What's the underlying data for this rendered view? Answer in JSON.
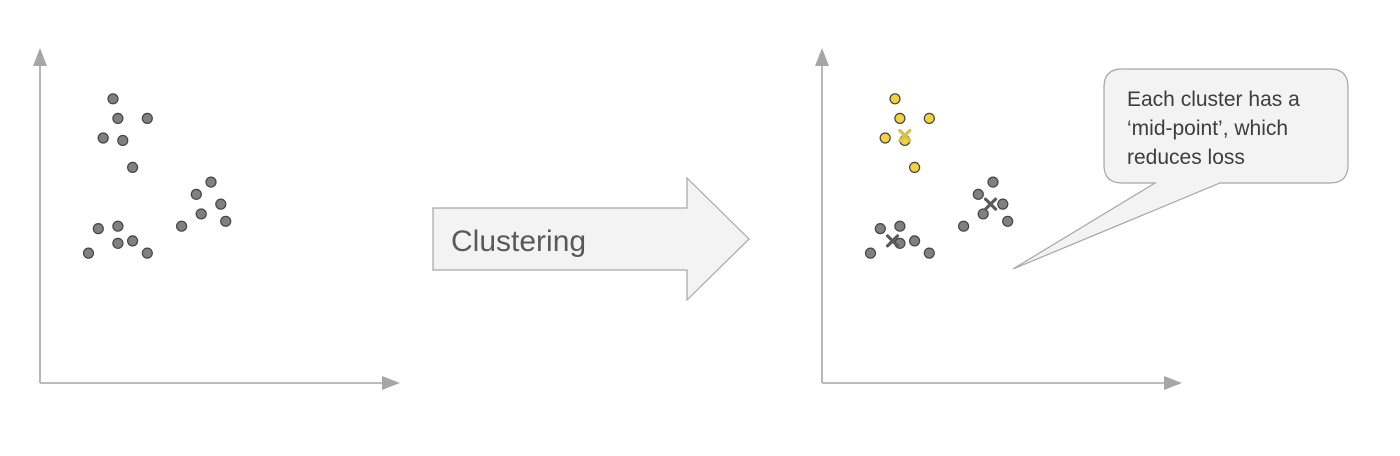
{
  "arrow": {
    "label": "Clustering"
  },
  "callout": {
    "lines": [
      "Each cluster has a",
      "‘mid-point’, which",
      "reduces loss"
    ]
  },
  "colors": {
    "point_default": "#808080",
    "point_highlight": "#f2d33c",
    "centroid_yellow": "#d9c04a",
    "centroid_gray": "#5a5a5a",
    "axis": "#a6a6a6",
    "shape_fill": "#f3f3f3"
  },
  "panels": {
    "before": {
      "points": [
        {
          "x": 2.0,
          "y": 5.8,
          "cluster": 0
        },
        {
          "x": 2.1,
          "y": 5.4,
          "cluster": 0
        },
        {
          "x": 2.7,
          "y": 5.4,
          "cluster": 0
        },
        {
          "x": 1.8,
          "y": 5.0,
          "cluster": 0
        },
        {
          "x": 2.2,
          "y": 4.95,
          "cluster": 0
        },
        {
          "x": 2.4,
          "y": 4.4,
          "cluster": 0
        },
        {
          "x": 4.0,
          "y": 4.1,
          "cluster": 1
        },
        {
          "x": 3.7,
          "y": 3.85,
          "cluster": 1
        },
        {
          "x": 4.2,
          "y": 3.65,
          "cluster": 1
        },
        {
          "x": 3.8,
          "y": 3.45,
          "cluster": 1
        },
        {
          "x": 3.4,
          "y": 3.2,
          "cluster": 1
        },
        {
          "x": 4.3,
          "y": 3.3,
          "cluster": 1
        },
        {
          "x": 1.7,
          "y": 3.15,
          "cluster": 2
        },
        {
          "x": 2.1,
          "y": 3.2,
          "cluster": 2
        },
        {
          "x": 2.1,
          "y": 2.85,
          "cluster": 2
        },
        {
          "x": 2.4,
          "y": 2.9,
          "cluster": 2
        },
        {
          "x": 1.5,
          "y": 2.65,
          "cluster": 2
        },
        {
          "x": 2.7,
          "y": 2.65,
          "cluster": 2
        }
      ]
    },
    "after": {
      "points": [
        {
          "x": 2.0,
          "y": 5.8,
          "cluster": 0
        },
        {
          "x": 2.1,
          "y": 5.4,
          "cluster": 0
        },
        {
          "x": 2.7,
          "y": 5.4,
          "cluster": 0
        },
        {
          "x": 1.8,
          "y": 5.0,
          "cluster": 0
        },
        {
          "x": 2.2,
          "y": 4.95,
          "cluster": 0
        },
        {
          "x": 2.4,
          "y": 4.4,
          "cluster": 0
        },
        {
          "x": 4.0,
          "y": 4.1,
          "cluster": 1
        },
        {
          "x": 3.7,
          "y": 3.85,
          "cluster": 1
        },
        {
          "x": 4.2,
          "y": 3.65,
          "cluster": 1
        },
        {
          "x": 3.8,
          "y": 3.45,
          "cluster": 1
        },
        {
          "x": 3.4,
          "y": 3.2,
          "cluster": 1
        },
        {
          "x": 4.3,
          "y": 3.3,
          "cluster": 1
        },
        {
          "x": 1.7,
          "y": 3.15,
          "cluster": 2
        },
        {
          "x": 2.1,
          "y": 3.2,
          "cluster": 2
        },
        {
          "x": 2.1,
          "y": 2.85,
          "cluster": 2
        },
        {
          "x": 2.4,
          "y": 2.9,
          "cluster": 2
        },
        {
          "x": 1.5,
          "y": 2.65,
          "cluster": 2
        },
        {
          "x": 2.7,
          "y": 2.65,
          "cluster": 2
        }
      ],
      "cluster_colors": [
        "#f2d33c",
        "#808080",
        "#808080"
      ],
      "centroids": [
        {
          "x": 2.2,
          "y": 5.05,
          "color": "#d9c04a"
        },
        {
          "x": 3.95,
          "y": 3.65,
          "color": "#5a5a5a"
        },
        {
          "x": 1.95,
          "y": 2.9,
          "color": "#5a5a5a"
        }
      ]
    }
  }
}
